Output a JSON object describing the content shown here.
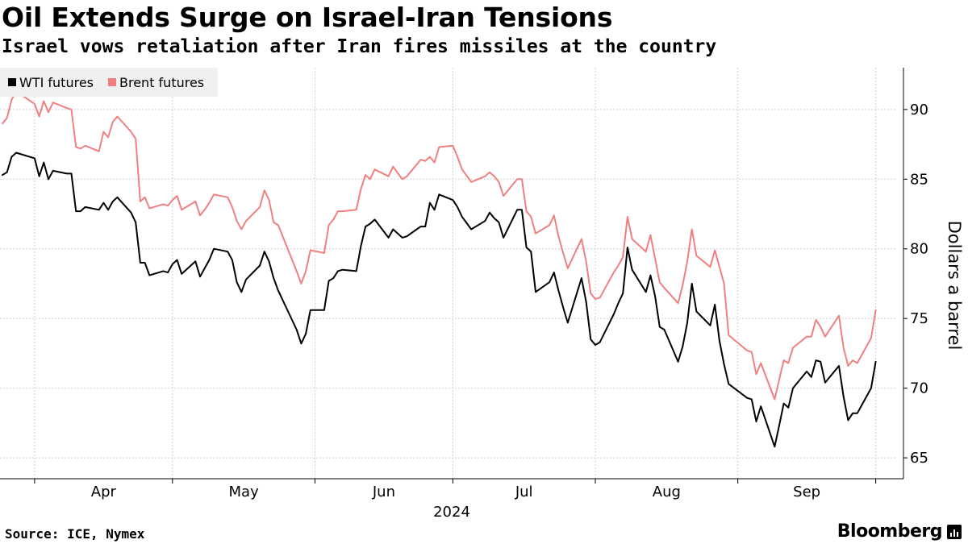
{
  "header": {
    "title": "Oil Extends Surge on Israel-Iran Tensions",
    "subtitle": "Israel vows retaliation after Iran fires missiles at the country"
  },
  "footer": {
    "source": "Source: ICE, Nymex",
    "brand": "Bloomberg"
  },
  "colors": {
    "wti": "#000000",
    "brent": "#f08080",
    "grid": "#d0d0d0"
  },
  "chart_data": {
    "type": "line",
    "title": "Oil Extends Surge on Israel-Iran Tensions",
    "subtitle": "Israel vows retaliation after Iran fires missiles at the country",
    "ylabel": "Dollars a barrel",
    "xlabel": "2024",
    "year_label": "2024",
    "month_labels": [
      "Apr",
      "May",
      "Jun",
      "Jul",
      "Aug",
      "Sep"
    ],
    "y_ticks": [
      65,
      70,
      75,
      80,
      85,
      90
    ],
    "ylim": [
      63.5,
      93.0
    ],
    "y_axis_side": "right",
    "grid": true,
    "legend_position": "top-left",
    "x_dates": [
      "2024-03-25",
      "2024-03-26",
      "2024-03-27",
      "2024-03-28",
      "2024-04-01",
      "2024-04-02",
      "2024-04-03",
      "2024-04-04",
      "2024-04-05",
      "2024-04-08",
      "2024-04-09",
      "2024-04-10",
      "2024-04-11",
      "2024-04-12",
      "2024-04-15",
      "2024-04-16",
      "2024-04-17",
      "2024-04-18",
      "2024-04-19",
      "2024-04-22",
      "2024-04-23",
      "2024-04-24",
      "2024-04-25",
      "2024-04-26",
      "2024-04-29",
      "2024-04-30",
      "2024-05-01",
      "2024-05-02",
      "2024-05-03",
      "2024-05-06",
      "2024-05-07",
      "2024-05-08",
      "2024-05-09",
      "2024-05-10",
      "2024-05-13",
      "2024-05-14",
      "2024-05-15",
      "2024-05-16",
      "2024-05-17",
      "2024-05-20",
      "2024-05-21",
      "2024-05-22",
      "2024-05-23",
      "2024-05-24",
      "2024-05-28",
      "2024-05-29",
      "2024-05-30",
      "2024-05-31",
      "2024-06-03",
      "2024-06-04",
      "2024-06-05",
      "2024-06-06",
      "2024-06-07",
      "2024-06-10",
      "2024-06-11",
      "2024-06-12",
      "2024-06-13",
      "2024-06-14",
      "2024-06-17",
      "2024-06-18",
      "2024-06-20",
      "2024-06-21",
      "2024-06-24",
      "2024-06-25",
      "2024-06-26",
      "2024-06-27",
      "2024-06-28",
      "2024-07-01",
      "2024-07-02",
      "2024-07-03",
      "2024-07-05",
      "2024-07-08",
      "2024-07-09",
      "2024-07-10",
      "2024-07-11",
      "2024-07-12",
      "2024-07-15",
      "2024-07-16",
      "2024-07-17",
      "2024-07-18",
      "2024-07-19",
      "2024-07-22",
      "2024-07-23",
      "2024-07-24",
      "2024-07-25",
      "2024-07-26",
      "2024-07-29",
      "2024-07-30",
      "2024-07-31",
      "2024-08-01",
      "2024-08-02",
      "2024-08-05",
      "2024-08-06",
      "2024-08-07",
      "2024-08-08",
      "2024-08-09",
      "2024-08-12",
      "2024-08-13",
      "2024-08-14",
      "2024-08-15",
      "2024-08-16",
      "2024-08-19",
      "2024-08-20",
      "2024-08-21",
      "2024-08-22",
      "2024-08-23",
      "2024-08-26",
      "2024-08-27",
      "2024-08-28",
      "2024-08-29",
      "2024-08-30",
      "2024-09-03",
      "2024-09-04",
      "2024-09-05",
      "2024-09-06",
      "2024-09-09",
      "2024-09-10",
      "2024-09-11",
      "2024-09-12",
      "2024-09-13",
      "2024-09-16",
      "2024-09-17",
      "2024-09-18",
      "2024-09-19",
      "2024-09-20",
      "2024-09-23",
      "2024-09-24",
      "2024-09-25",
      "2024-09-26",
      "2024-09-27",
      "2024-09-30",
      "2024-10-01",
      "2024-10-02",
      "2024-10-03"
    ],
    "series": [
      {
        "name": "WTI futures",
        "color": "#000000",
        "values": [
          85.3,
          85.5,
          86.6,
          86.9,
          86.5,
          85.2,
          86.2,
          85.0,
          85.6,
          85.4,
          85.4,
          82.7,
          82.7,
          83.0,
          82.8,
          83.3,
          82.8,
          83.4,
          83.7,
          82.6,
          81.9,
          79.0,
          79.0,
          78.1,
          78.4,
          78.3,
          78.9,
          79.2,
          78.2,
          79.1,
          78.0,
          78.6,
          79.2,
          80.0,
          79.8,
          79.2,
          77.6,
          76.9,
          77.8,
          78.8,
          79.8,
          79.1,
          77.9,
          77.0,
          74.2,
          73.2,
          73.9,
          75.6,
          75.6,
          77.7,
          77.9,
          78.4,
          78.5,
          78.4,
          80.2,
          81.6,
          81.8,
          82.1,
          80.8,
          81.4,
          80.8,
          80.9,
          81.6,
          81.6,
          83.3,
          82.8,
          83.9,
          83.5,
          83.0,
          82.3,
          81.4,
          82.0,
          82.6,
          82.2,
          81.9,
          80.8,
          82.8,
          82.8,
          80.1,
          79.8,
          76.9,
          77.6,
          78.3,
          77.0,
          75.8,
          74.7,
          77.9,
          76.2,
          73.5,
          73.1,
          73.3,
          75.3,
          76.1,
          76.8,
          80.1,
          78.5,
          76.9,
          78.1,
          76.6,
          74.4,
          74.2,
          71.9,
          73.0,
          74.7,
          77.5,
          75.5,
          74.5,
          76.0,
          73.4,
          71.7,
          70.3,
          69.3,
          69.2,
          67.6,
          68.7,
          65.8,
          67.3,
          68.9,
          68.6,
          70.0,
          71.2,
          70.8,
          72.0,
          71.9,
          70.4,
          71.6,
          69.4,
          67.7,
          68.2,
          68.2,
          70.0,
          71.9
        ]
      },
      {
        "name": "Brent futures",
        "color": "#f08080",
        "values": [
          89.0,
          89.4,
          90.7,
          91.3,
          90.4,
          89.5,
          90.6,
          89.8,
          90.5,
          90.1,
          90.0,
          87.3,
          87.2,
          87.4,
          87.0,
          88.4,
          88.0,
          89.1,
          89.5,
          88.4,
          87.9,
          83.4,
          83.7,
          82.9,
          83.2,
          83.1,
          83.5,
          83.8,
          82.8,
          83.4,
          82.4,
          82.8,
          83.3,
          83.9,
          83.7,
          83.0,
          82.0,
          81.4,
          82.0,
          83.0,
          84.2,
          83.5,
          81.9,
          81.7,
          78.4,
          77.5,
          78.4,
          79.9,
          79.7,
          81.7,
          82.1,
          82.7,
          82.7,
          82.8,
          84.3,
          85.3,
          85.0,
          85.7,
          85.2,
          85.9,
          85.0,
          85.2,
          86.4,
          86.3,
          86.6,
          86.2,
          87.3,
          87.4,
          86.6,
          85.7,
          84.8,
          85.2,
          85.5,
          85.2,
          84.8,
          83.8,
          85.0,
          85.0,
          82.7,
          82.3,
          81.1,
          81.7,
          82.4,
          80.9,
          79.7,
          78.6,
          80.7,
          79.1,
          76.8,
          76.4,
          76.5,
          78.3,
          78.8,
          79.4,
          82.3,
          80.7,
          79.8,
          81.0,
          79.3,
          77.6,
          77.2,
          76.1,
          77.4,
          79.1,
          81.4,
          79.5,
          78.7,
          79.9,
          78.7,
          77.5,
          73.8,
          72.7,
          72.6,
          71.0,
          71.8,
          69.2,
          70.6,
          72.0,
          71.8,
          72.9,
          73.7,
          73.7,
          74.9,
          74.4,
          73.7,
          75.2,
          72.9,
          71.6,
          72.0,
          71.8,
          73.6,
          75.6
        ]
      }
    ]
  }
}
